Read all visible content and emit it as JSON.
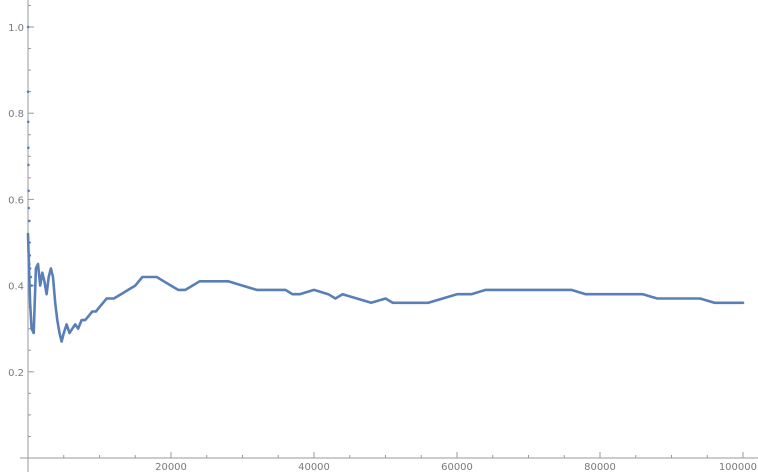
{
  "chart_data": {
    "type": "line",
    "title": "",
    "xlabel": "",
    "ylabel": "",
    "xlim": [
      0,
      100000
    ],
    "ylim": [
      0,
      1.05
    ],
    "grid": false,
    "x_ticks": [
      {
        "value": 20000,
        "label": "20000"
      },
      {
        "value": 40000,
        "label": "40000"
      },
      {
        "value": 60000,
        "label": "60000"
      },
      {
        "value": 80000,
        "label": "80000"
      },
      {
        "value": 100000,
        "label": "100000"
      }
    ],
    "y_ticks": [
      {
        "value": 0.2,
        "label": "0.2"
      },
      {
        "value": 0.4,
        "label": "0.4"
      },
      {
        "value": 0.6,
        "label": "0.6"
      },
      {
        "value": 0.8,
        "label": "0.8"
      },
      {
        "value": 1.0,
        "label": "1.0"
      }
    ],
    "colors": {
      "series": "#5a7fb8",
      "axis": "#9a9a9a",
      "text": "#7a7a7a"
    },
    "series": [
      {
        "early_points": [
          [
            10,
            1.0
          ],
          [
            20,
            0.85
          ],
          [
            30,
            0.78
          ],
          [
            40,
            0.72
          ],
          [
            60,
            0.68
          ],
          [
            80,
            0.62
          ],
          [
            100,
            0.58
          ],
          [
            150,
            0.55
          ],
          [
            200,
            0.5
          ],
          [
            250,
            0.47
          ],
          [
            300,
            0.44
          ],
          [
            400,
            0.42
          ],
          [
            500,
            0.4
          ]
        ],
        "x": [
          0,
          300,
          500,
          800,
          1100,
          1400,
          1700,
          2000,
          2300,
          2600,
          2900,
          3200,
          3500,
          3800,
          4100,
          4400,
          4700,
          5000,
          5400,
          5800,
          6200,
          6600,
          7000,
          7500,
          8000,
          8500,
          9000,
          9500,
          10000,
          11000,
          12000,
          13000,
          14000,
          15000,
          16000,
          17000,
          18000,
          19000,
          20000,
          21000,
          22000,
          23000,
          24000,
          25000,
          26000,
          27000,
          28000,
          30000,
          32000,
          34000,
          36000,
          37000,
          38000,
          40000,
          42000,
          43000,
          44000,
          46000,
          48000,
          50000,
          51000,
          52000,
          54000,
          56000,
          58000,
          60000,
          62000,
          64000,
          66000,
          68000,
          70000,
          72000,
          74000,
          76000,
          78000,
          80000,
          82000,
          84000,
          86000,
          88000,
          90000,
          92000,
          94000,
          96000,
          98000,
          100000
        ],
        "y": [
          0.52,
          0.36,
          0.3,
          0.29,
          0.44,
          0.45,
          0.4,
          0.43,
          0.41,
          0.38,
          0.42,
          0.44,
          0.42,
          0.36,
          0.32,
          0.29,
          0.27,
          0.29,
          0.31,
          0.29,
          0.3,
          0.31,
          0.3,
          0.32,
          0.32,
          0.33,
          0.34,
          0.34,
          0.35,
          0.37,
          0.37,
          0.38,
          0.39,
          0.4,
          0.42,
          0.42,
          0.42,
          0.41,
          0.4,
          0.39,
          0.39,
          0.4,
          0.41,
          0.41,
          0.41,
          0.41,
          0.41,
          0.4,
          0.39,
          0.39,
          0.39,
          0.38,
          0.38,
          0.39,
          0.38,
          0.37,
          0.38,
          0.37,
          0.36,
          0.37,
          0.36,
          0.36,
          0.36,
          0.36,
          0.37,
          0.38,
          0.38,
          0.39,
          0.39,
          0.39,
          0.39,
          0.39,
          0.39,
          0.39,
          0.38,
          0.38,
          0.38,
          0.38,
          0.38,
          0.37,
          0.37,
          0.37,
          0.37,
          0.36,
          0.36,
          0.36
        ]
      }
    ]
  }
}
